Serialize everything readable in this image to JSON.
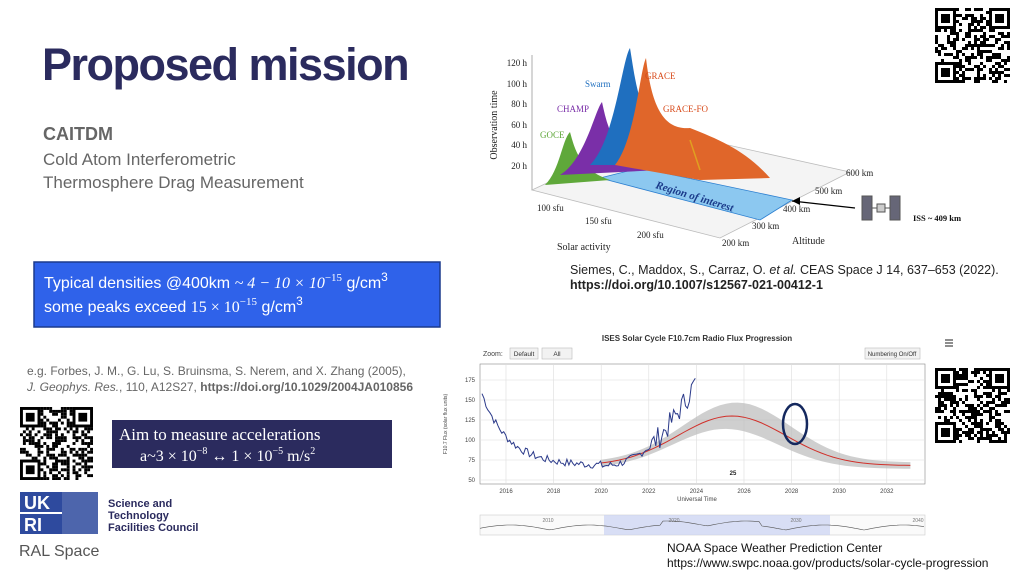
{
  "header": {
    "title": "Proposed mission",
    "acronym": "CAITDM",
    "lines": [
      "Cold Atom Interferometric",
      "Thermosphere Drag Measurement"
    ]
  },
  "densities": {
    "line1": {
      "text": "Typical densities @400km",
      "expr": "~ 4 − 10 × 10",
      "exp": "−15",
      "unit": "g/cm",
      "unit_exp": "3"
    },
    "line2": {
      "text": "some peaks exceed",
      "expr": "15 × 10",
      "exp": "−15",
      "unit": "g/cm",
      "unit_exp": "3"
    }
  },
  "reference": {
    "line1": "e.g. Forbes, J. M., G. Lu, S. Bruinsma, S. Nerem, and X. Zhang (2005),",
    "journal": "J. Geophys. Res.",
    "details": ", 110, A12S27,",
    "doi": "https://doi.org/10.1029/2004JA010856"
  },
  "aim": {
    "line1": "Aim to measure accelerations",
    "a": "a~3 × 10",
    "a_exp": "−8",
    "arrow": "↔ 1 × 10",
    "b_exp": "−5",
    "unit": "m/s",
    "unit_exp": "2"
  },
  "logo": {
    "mark_top": "UK",
    "mark_bottom": "RI",
    "org": [
      "Science and",
      "Technology",
      "Facilities Council"
    ],
    "dept": "RAL Space"
  },
  "figure_3d": {
    "y_label": "Observation time",
    "y_ticks": [
      "120 h",
      "100 h",
      "80 h",
      "60 h",
      "40 h",
      "20 h"
    ],
    "missions": [
      "GOCE",
      "CHAMP",
      "Swarm",
      "GRACE",
      "GRACE-FO"
    ],
    "region": "Region of interest",
    "solar_ticks": [
      "100 sfu",
      "150 sfu",
      "200 sfu"
    ],
    "solar_label": "Solar activity",
    "altitude_ticks": [
      "200 km",
      "300 km",
      "400 km",
      "500 km",
      "600 km"
    ],
    "altitude_label": "Altitude",
    "iss": "ISS ~ 409 km"
  },
  "citation": {
    "authors": "Siemes, C., Maddox, S., Carraz, O.",
    "etal": "et al.",
    "rest": "CEAS Space J 14, 637–653 (2022).",
    "doi": "https://doi.org/10.1007/s12567-021-00412-1"
  },
  "figure_solar": {
    "title": "ISES Solar Cycle F10.7cm Radio Flux Progression",
    "zoom": "Zoom:",
    "buttons": [
      "Default",
      "All"
    ],
    "toggle": "Numbering On/Off",
    "y_label": "F10.7 Flux (solar flux units)",
    "y_ticks": [
      "175",
      "150",
      "125",
      "100",
      "75",
      "50"
    ],
    "x_ticks": [
      "2016",
      "2018",
      "2020",
      "2022",
      "2024",
      "2026",
      "2028",
      "2030",
      "2032"
    ],
    "x_label": "Universal Time",
    "cycle": "25",
    "nav_ticks": [
      "2010",
      "2020",
      "2030",
      "2040"
    ]
  },
  "source": {
    "name": "NOAA Space Weather Prediction Center",
    "url": "https://www.swpc.noaa.gov/products/solar-cycle-progression"
  }
}
